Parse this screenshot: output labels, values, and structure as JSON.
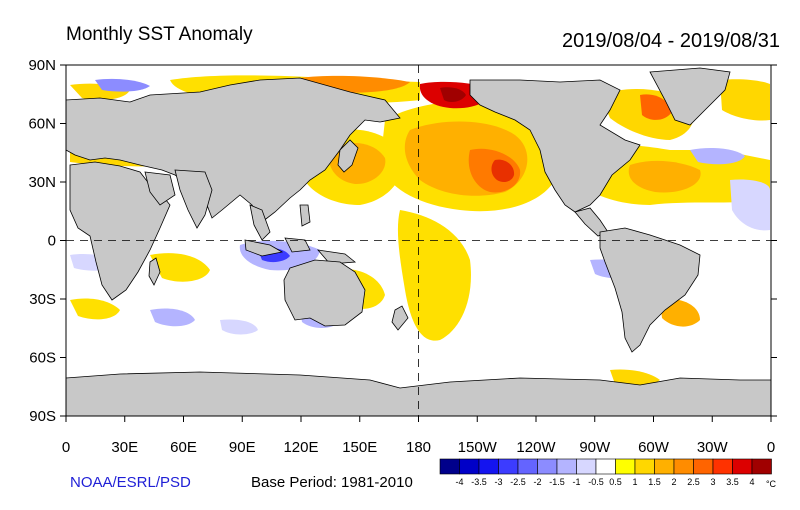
{
  "header": {
    "title": "Monthly SST Anomaly",
    "date_range": "2019/08/04 - 2019/08/31"
  },
  "map": {
    "lat_ticks": [
      "90N",
      "60N",
      "30N",
      "0",
      "30S",
      "60S",
      "90S"
    ],
    "lon_ticks": [
      "0",
      "30E",
      "60E",
      "90E",
      "120E",
      "150E",
      "180",
      "150W",
      "120W",
      "90W",
      "60W",
      "30W",
      "0"
    ],
    "land_color": "#c8c8c8",
    "ocean_color": "#ffffff"
  },
  "colorbar": {
    "labels": [
      "-4",
      "-3.5",
      "-3",
      "-2.5",
      "-2",
      "-1.5",
      "-1",
      "-0.5",
      "0.5",
      "1",
      "1.5",
      "2",
      "2.5",
      "3",
      "3.5",
      "4"
    ],
    "unit": "°C",
    "colors": [
      "#00008b",
      "#0000c8",
      "#1414f0",
      "#3c3cff",
      "#6464ff",
      "#8c8cff",
      "#b4b4ff",
      "#d7d7ff",
      "#ffffff",
      "#ffff00",
      "#ffd700",
      "#ffb000",
      "#ff8c00",
      "#ff6400",
      "#ff3200",
      "#dc0000",
      "#a00000"
    ]
  },
  "footer": {
    "credit": "NOAA/ESRL/PSD",
    "base_period": "Base Period: 1981-2010"
  }
}
